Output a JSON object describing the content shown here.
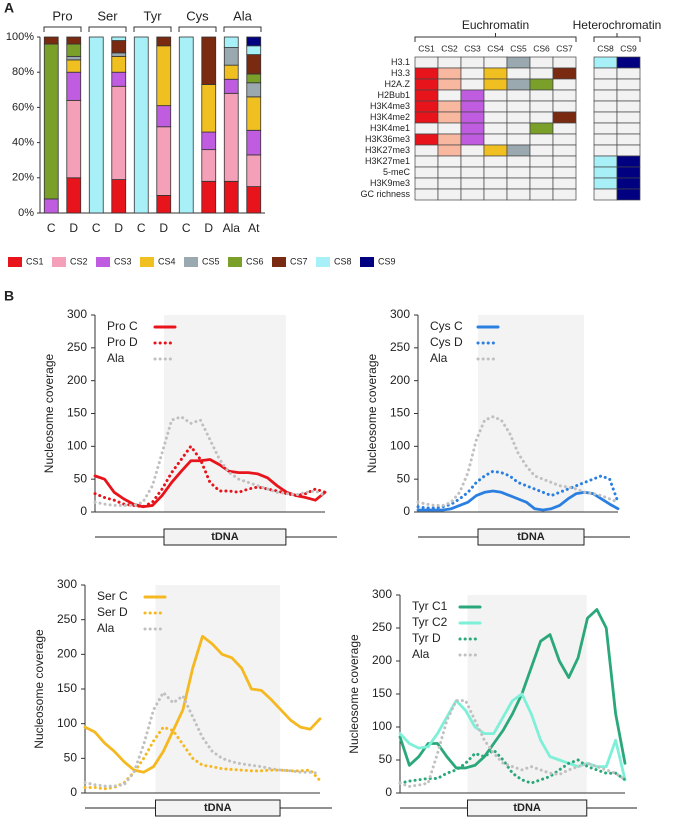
{
  "figure": {
    "panel_labels": [
      "A",
      "B"
    ]
  },
  "chart_data": [
    {
      "type": "bar",
      "stacked": true,
      "groups": [
        "Pro",
        "Ser",
        "Tyr",
        "Cys",
        "Ala"
      ],
      "categories": [
        "C",
        "D",
        "C",
        "D",
        "C",
        "D",
        "C",
        "D",
        "Ala",
        "At"
      ],
      "ylim": [
        0,
        100
      ],
      "yticks": [
        {
          "value": 0,
          "label": "0%"
        },
        {
          "value": 20,
          "label": "20%"
        },
        {
          "value": 40,
          "label": "40%"
        },
        {
          "value": 60,
          "label": "60%"
        },
        {
          "value": 80,
          "label": "80%"
        },
        {
          "value": 100,
          "label": "100%"
        }
      ],
      "series": [
        {
          "name": "CS1",
          "color": "#e8141c",
          "values": [
            0,
            20,
            0,
            19,
            0,
            10,
            0,
            18,
            18,
            15
          ]
        },
        {
          "name": "CS2",
          "color": "#f4a0b8",
          "values": [
            0,
            44,
            0,
            53,
            0,
            39,
            0,
            18,
            50,
            18
          ]
        },
        {
          "name": "CS3",
          "color": "#c05ce0",
          "values": [
            8,
            16,
            0,
            8,
            0,
            12,
            0,
            10,
            8,
            14
          ]
        },
        {
          "name": "CS4",
          "color": "#f0c020",
          "values": [
            0,
            7,
            0,
            9,
            0,
            34,
            0,
            27,
            8,
            19
          ]
        },
        {
          "name": "CS5",
          "color": "#9aa8b0",
          "values": [
            0,
            2,
            0,
            2,
            0,
            0,
            0,
            0,
            10,
            8
          ]
        },
        {
          "name": "CS6",
          "color": "#7aa02a",
          "values": [
            88,
            7,
            0,
            0,
            0,
            0,
            0,
            0,
            0,
            5
          ]
        },
        {
          "name": "CS7",
          "color": "#7a2a10",
          "values": [
            4,
            4,
            0,
            7,
            0,
            5,
            0,
            27,
            0,
            11
          ]
        },
        {
          "name": "CS8",
          "color": "#a8f0f8",
          "values": [
            0,
            0,
            100,
            2,
            100,
            0,
            100,
            0,
            6,
            5
          ]
        },
        {
          "name": "CS9",
          "color": "#000080",
          "values": [
            0,
            0,
            0,
            0,
            0,
            0,
            0,
            0,
            0,
            5
          ]
        }
      ]
    },
    {
      "type": "heatmap",
      "column_groups": [
        {
          "name": "Euchromatin",
          "columns": [
            "CS1",
            "CS2",
            "CS3",
            "CS4",
            "CS5",
            "CS6",
            "CS7"
          ],
          "colors": [
            "#e8141c",
            "#f8b8a0",
            "#c05ce0",
            "#f0c020",
            "#9aa8b0",
            "#7aa02a",
            "#7a2a10"
          ]
        },
        {
          "name": "Heterochromatin",
          "columns": [
            "CS8",
            "CS9"
          ],
          "colors": [
            "#a8f0f8",
            "#000080"
          ]
        }
      ],
      "rows": [
        {
          "label": "H3.1",
          "marked": [
            false,
            false,
            false,
            false,
            true,
            false,
            false,
            true,
            true
          ]
        },
        {
          "label": "H3.3",
          "marked": [
            true,
            true,
            false,
            true,
            false,
            false,
            true,
            false,
            false
          ]
        },
        {
          "label": "H2A.Z",
          "marked": [
            true,
            true,
            false,
            true,
            true,
            true,
            false,
            false,
            false
          ]
        },
        {
          "label": "H2Bub1",
          "marked": [
            true,
            false,
            true,
            false,
            false,
            false,
            false,
            false,
            false
          ]
        },
        {
          "label": "H3K4me3",
          "marked": [
            true,
            true,
            true,
            false,
            false,
            false,
            false,
            false,
            false
          ]
        },
        {
          "label": "H3K4me2",
          "marked": [
            true,
            true,
            true,
            false,
            false,
            false,
            true,
            false,
            false
          ]
        },
        {
          "label": "H3K4me1",
          "marked": [
            false,
            false,
            true,
            false,
            false,
            true,
            false,
            false,
            false
          ]
        },
        {
          "label": "H3K36me3",
          "marked": [
            true,
            true,
            true,
            false,
            false,
            false,
            false,
            false,
            false
          ]
        },
        {
          "label": "H3K27me3",
          "marked": [
            false,
            true,
            false,
            true,
            true,
            false,
            false,
            false,
            false
          ]
        },
        {
          "label": "H3K27me1",
          "marked": [
            false,
            false,
            false,
            false,
            false,
            false,
            false,
            true,
            true
          ]
        },
        {
          "label": "5-meC",
          "marked": [
            false,
            false,
            false,
            false,
            false,
            false,
            false,
            true,
            true
          ]
        },
        {
          "label": "H3K9me3",
          "marked": [
            false,
            false,
            false,
            false,
            false,
            false,
            false,
            true,
            true
          ]
        },
        {
          "label": "GC richness",
          "marked": [
            false,
            false,
            false,
            false,
            false,
            false,
            false,
            false,
            true
          ]
        }
      ]
    },
    {
      "type": "line",
      "y_label": "Nucleosome coverage",
      "x_label": "tDNA",
      "ylim": [
        0,
        300
      ],
      "yticks": [
        0,
        50,
        100,
        150,
        200,
        250,
        300
      ],
      "series": [
        {
          "name": "Pro C",
          "color": "#e8141c",
          "style": "solid",
          "values": [
            55,
            50,
            30,
            20,
            12,
            8,
            10,
            25,
            45,
            62,
            78,
            78,
            80,
            72,
            62,
            60,
            60,
            58,
            52,
            40,
            30,
            25,
            22,
            18,
            30
          ]
        },
        {
          "name": "Pro D",
          "color": "#e8141c",
          "style": "dotted",
          "values": [
            28,
            22,
            18,
            12,
            10,
            8,
            15,
            35,
            60,
            80,
            100,
            80,
            45,
            32,
            32,
            30,
            35,
            38,
            35,
            32,
            28,
            25,
            28,
            35,
            30
          ]
        },
        {
          "name": "Ala",
          "color": "#c0c0c0",
          "style": "dotted",
          "values": [
            15,
            12,
            10,
            10,
            10,
            15,
            40,
            90,
            140,
            145,
            135,
            140,
            110,
            80,
            60,
            50,
            45,
            40,
            35,
            30,
            28,
            26,
            30,
            32,
            25
          ]
        }
      ]
    },
    {
      "type": "line",
      "y_label": "Nucleosome coverage",
      "x_label": "tDNA",
      "ylim": [
        0,
        300
      ],
      "yticks": [
        0,
        50,
        100,
        150,
        200,
        250,
        300
      ],
      "series": [
        {
          "name": "Cys C",
          "color": "#2a7fe0",
          "style": "solid",
          "values": [
            3,
            3,
            3,
            3,
            5,
            10,
            15,
            25,
            30,
            32,
            30,
            25,
            20,
            15,
            5,
            3,
            5,
            10,
            20,
            28,
            30,
            28,
            20,
            12,
            5
          ]
        },
        {
          "name": "Cys D",
          "color": "#2a7fe0",
          "style": "dotted",
          "values": [
            8,
            6,
            6,
            8,
            12,
            20,
            30,
            45,
            55,
            62,
            60,
            55,
            45,
            40,
            35,
            30,
            25,
            30,
            35,
            40,
            45,
            50,
            55,
            50,
            15
          ]
        },
        {
          "name": "Ala",
          "color": "#c0c0c0",
          "style": "dotted",
          "values": [
            15,
            12,
            10,
            10,
            15,
            30,
            60,
            110,
            140,
            145,
            140,
            120,
            90,
            70,
            55,
            50,
            45,
            40,
            38,
            35,
            30,
            28,
            25,
            20,
            15
          ]
        }
      ]
    },
    {
      "type": "line",
      "y_label": "Nucleosome coverage",
      "x_label": "tDNA",
      "ylim": [
        0,
        300
      ],
      "yticks": [
        0,
        50,
        100,
        150,
        200,
        250,
        300
      ],
      "series": [
        {
          "name": "Ser C",
          "color": "#f5b820",
          "style": "solid",
          "values": [
            95,
            88,
            72,
            60,
            45,
            33,
            30,
            38,
            60,
            90,
            120,
            180,
            226,
            215,
            200,
            195,
            180,
            150,
            148,
            135,
            120,
            105,
            95,
            92,
            107
          ]
        },
        {
          "name": "Ser D",
          "color": "#f5b820",
          "style": "dotted",
          "values": [
            8,
            8,
            6,
            8,
            15,
            30,
            50,
            75,
            95,
            90,
            70,
            50,
            40,
            38,
            35,
            34,
            33,
            32,
            32,
            33,
            33,
            32,
            32,
            33,
            18
          ]
        },
        {
          "name": "Ala",
          "color": "#c0c0c0",
          "style": "dotted",
          "values": [
            15,
            12,
            10,
            10,
            12,
            30,
            70,
            120,
            145,
            130,
            140,
            110,
            80,
            60,
            50,
            45,
            42,
            40,
            38,
            35,
            33,
            32,
            30,
            30,
            28
          ]
        }
      ]
    },
    {
      "type": "line",
      "y_label": "Nucleosome coverage",
      "x_label": "tDNA",
      "ylim": [
        0,
        300
      ],
      "yticks": [
        0,
        50,
        100,
        150,
        200,
        250,
        300
      ],
      "series": [
        {
          "name": "Tyr C1",
          "color": "#2aa87a",
          "style": "solid",
          "values": [
            85,
            42,
            55,
            75,
            75,
            55,
            38,
            38,
            42,
            55,
            75,
            95,
            120,
            150,
            190,
            230,
            240,
            200,
            175,
            205,
            265,
            278,
            250,
            120,
            45
          ]
        },
        {
          "name": "Tyr C2",
          "color": "#7ef0d8",
          "style": "solid",
          "values": [
            90,
            75,
            68,
            70,
            90,
            115,
            140,
            125,
            100,
            90,
            90,
            115,
            140,
            150,
            120,
            80,
            55,
            50,
            45,
            40,
            45,
            40,
            40,
            80,
            20
          ]
        },
        {
          "name": "Tyr D",
          "color": "#2aa87a",
          "style": "dotted",
          "values": [
            15,
            18,
            20,
            22,
            22,
            30,
            35,
            45,
            60,
            55,
            65,
            50,
            30,
            20,
            15,
            20,
            25,
            35,
            45,
            50,
            40,
            35,
            30,
            30,
            20
          ]
        },
        {
          "name": "Ala",
          "color": "#c0c0c0",
          "style": "dotted",
          "values": [
            15,
            10,
            12,
            15,
            60,
            110,
            140,
            140,
            110,
            80,
            60,
            45,
            40,
            35,
            40,
            35,
            30,
            28,
            35,
            40,
            45,
            40,
            35,
            30,
            20
          ]
        }
      ]
    }
  ]
}
